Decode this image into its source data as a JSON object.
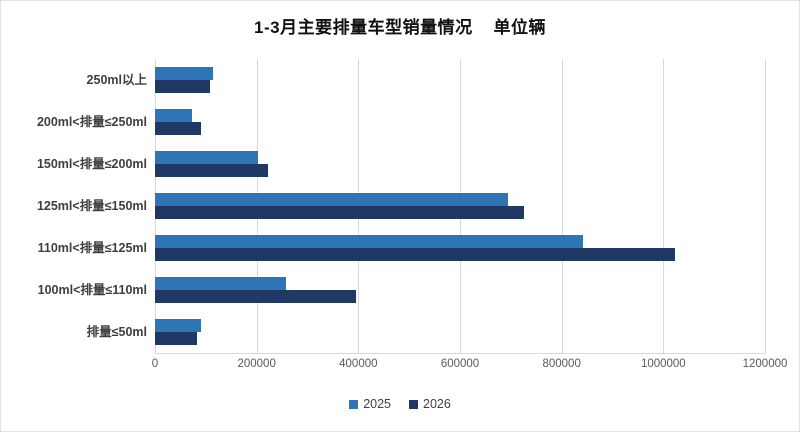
{
  "title": "1-3月主要排量车型销量情况    单位辆",
  "colors": {
    "series_2025": "#2E75B6",
    "series_2026": "#1F3864",
    "gridline": "#D9D9D9",
    "tick_text": "#595959",
    "category_text": "#3F3F3F"
  },
  "chart_data": {
    "type": "bar",
    "orientation": "horizontal",
    "title": "1-3月主要排量车型销量情况",
    "unit_label": "单位辆",
    "categories": [
      "250ml以上",
      "200ml<排量≤250ml",
      "150ml<排量≤200ml",
      "125ml<排量≤150ml",
      "110ml<排量≤125ml",
      "100ml<排量≤110ml",
      "排量≤50ml"
    ],
    "series": [
      {
        "name": "2025",
        "color": "#2E75B6",
        "values": [
          115000,
          72000,
          203000,
          694000,
          842000,
          257000,
          90000
        ]
      },
      {
        "name": "2026",
        "color": "#1F3864",
        "values": [
          108000,
          90000,
          223000,
          725000,
          1022000,
          395000,
          82000
        ]
      }
    ],
    "xlim": [
      0,
      1200000
    ],
    "x_ticks": [
      0,
      200000,
      400000,
      600000,
      800000,
      1000000,
      1200000
    ],
    "grid": true,
    "legend_position": "bottom"
  }
}
